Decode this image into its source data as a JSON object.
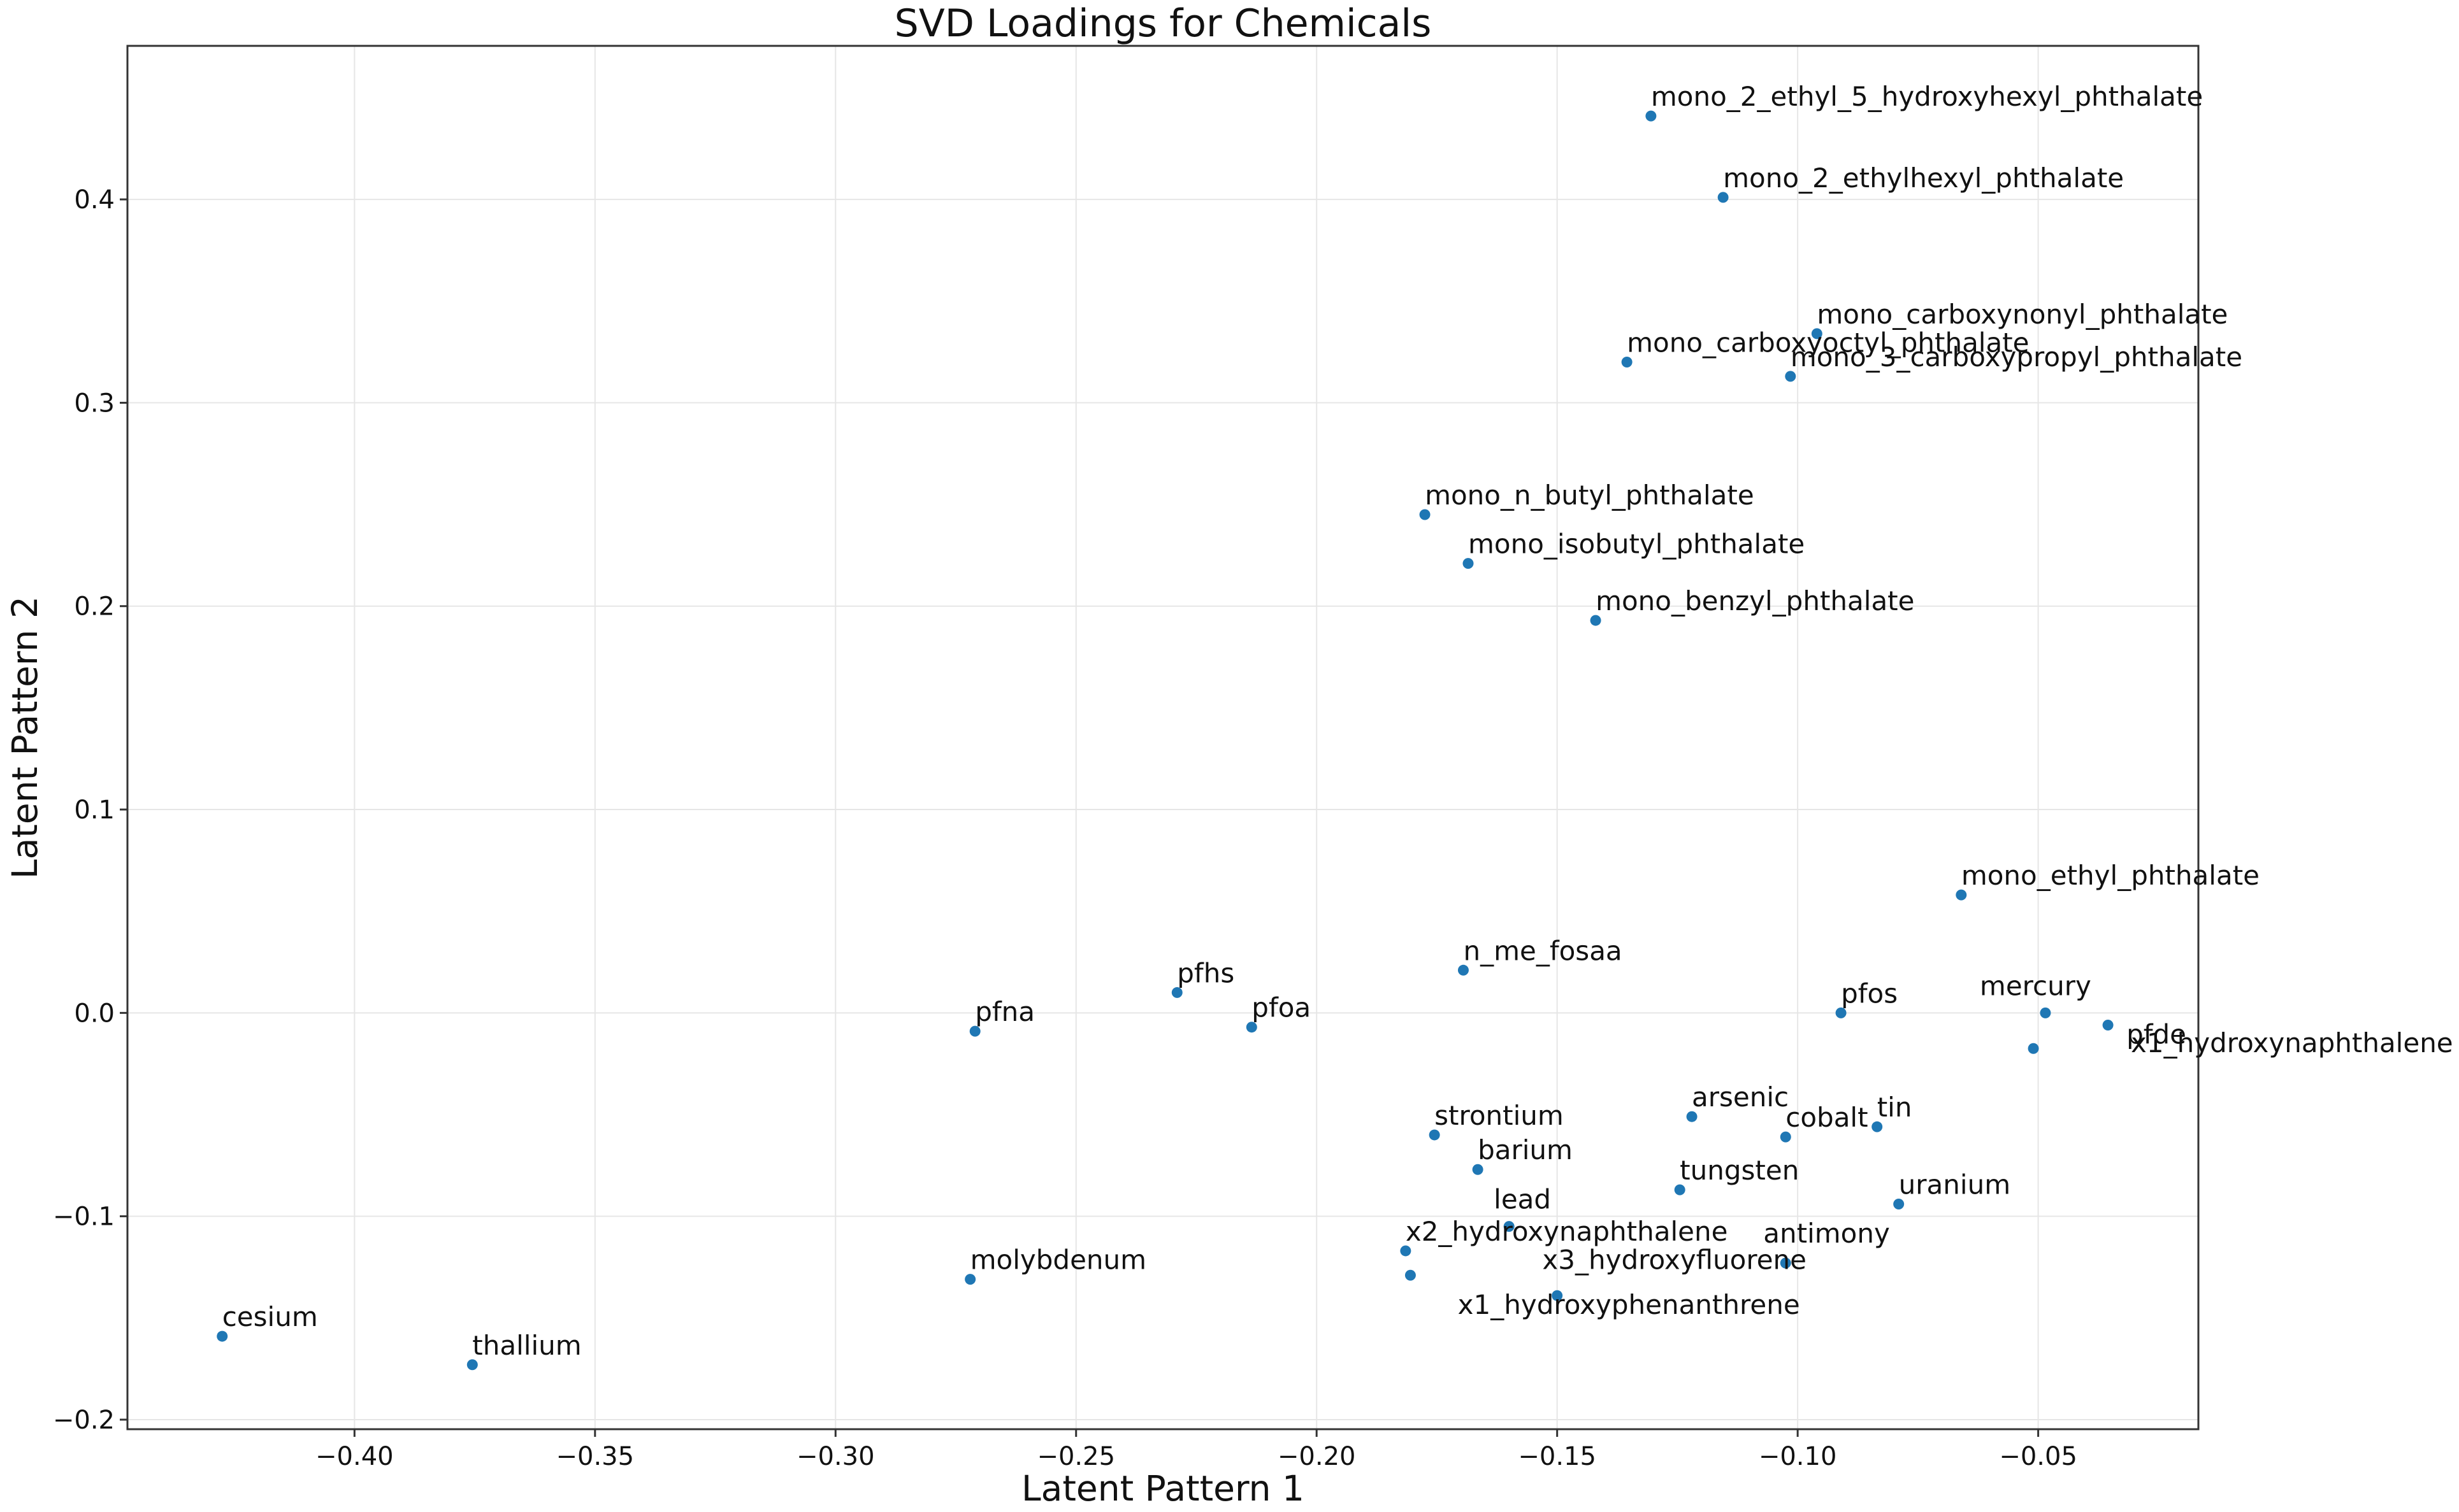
{
  "chart_data": {
    "type": "scatter",
    "title": "SVD Loadings for Chemicals",
    "xlabel": "Latent Pattern 1",
    "ylabel": "Latent Pattern 2",
    "xlim": [
      -0.4472,
      -0.0167
    ],
    "ylim": [
      -0.2047,
      0.4755
    ],
    "grid": true,
    "legend": "none",
    "point_color": "#1f77b4",
    "x_ticks": [
      {
        "value": -0.4,
        "label": "−0.40"
      },
      {
        "value": -0.35,
        "label": "−0.35"
      },
      {
        "value": -0.3,
        "label": "−0.30"
      },
      {
        "value": -0.25,
        "label": "−0.25"
      },
      {
        "value": -0.2,
        "label": "−0.20"
      },
      {
        "value": -0.15,
        "label": "−0.15"
      },
      {
        "value": -0.1,
        "label": "−0.10"
      },
      {
        "value": -0.05,
        "label": "−0.05"
      }
    ],
    "y_ticks": [
      {
        "value": -0.2,
        "label": "−0.2"
      },
      {
        "value": -0.1,
        "label": "−0.1"
      },
      {
        "value": 0.0,
        "label": "0.0"
      },
      {
        "value": 0.1,
        "label": "0.1"
      },
      {
        "value": 0.2,
        "label": "0.2"
      },
      {
        "value": 0.3,
        "label": "0.3"
      },
      {
        "value": 0.4,
        "label": "0.4"
      }
    ],
    "points": [
      {
        "label": "mono_2_ethyl_5_hydroxyhexyl_phthalate",
        "x": -0.1305,
        "y": 0.441
      },
      {
        "label": "mono_2_ethylhexyl_phthalate",
        "x": -0.1155,
        "y": 0.401
      },
      {
        "label": "mono_carboxynonyl_phthalate",
        "x": -0.096,
        "y": 0.334
      },
      {
        "label": "mono_carboxyoctyl_phthalate",
        "x": -0.1355,
        "y": 0.32
      },
      {
        "label": "mono_3_carboxypropyl_phthalate",
        "x": -0.1015,
        "y": 0.313
      },
      {
        "label": "mono_n_butyl_phthalate",
        "x": -0.1775,
        "y": 0.245
      },
      {
        "label": "mono_isobutyl_phthalate",
        "x": -0.1685,
        "y": 0.221
      },
      {
        "label": "mono_benzyl_phthalate",
        "x": -0.142,
        "y": 0.193
      },
      {
        "label": "mono_ethyl_phthalate",
        "x": -0.066,
        "y": 0.058
      },
      {
        "label": "n_me_fosaa",
        "x": -0.1695,
        "y": 0.021
      },
      {
        "label": "pfhs",
        "x": -0.229,
        "y": 0.01
      },
      {
        "label": "pfoa",
        "x": -0.2135,
        "y": -0.007
      },
      {
        "label": "pfna",
        "x": -0.271,
        "y": -0.009
      },
      {
        "label": "pfos",
        "x": -0.091,
        "y": 0.0
      },
      {
        "label": "mercury",
        "x": -0.0485,
        "y": 0.0
      },
      {
        "label": "pfde",
        "x": -0.0355,
        "y": -0.006
      },
      {
        "label": "x1_hydroxynaphthalene",
        "x": -0.051,
        "y": -0.0175
      },
      {
        "label": "arsenic",
        "x": -0.122,
        "y": -0.051
      },
      {
        "label": "strontium",
        "x": -0.1755,
        "y": -0.06
      },
      {
        "label": "cobalt",
        "x": -0.1025,
        "y": -0.061
      },
      {
        "label": "tin",
        "x": -0.0835,
        "y": -0.056
      },
      {
        "label": "barium",
        "x": -0.1665,
        "y": -0.077
      },
      {
        "label": "tungsten",
        "x": -0.1245,
        "y": -0.087
      },
      {
        "label": "uranium",
        "x": -0.079,
        "y": -0.094
      },
      {
        "label": "lead",
        "x": -0.16,
        "y": -0.105
      },
      {
        "label": "x2_hydroxynaphthalene",
        "x": -0.1815,
        "y": -0.117
      },
      {
        "label": "antimony",
        "x": -0.1025,
        "y": -0.123
      },
      {
        "label": "x3_hydroxyfluorene",
        "x": -0.1805,
        "y": -0.129
      },
      {
        "label": "x1_hydroxyphenanthrene",
        "x": -0.15,
        "y": -0.139
      },
      {
        "label": "molybdenum",
        "x": -0.272,
        "y": -0.131
      },
      {
        "label": "cesium",
        "x": -0.4275,
        "y": -0.159
      },
      {
        "label": "thallium",
        "x": -0.3755,
        "y": -0.173
      }
    ]
  }
}
